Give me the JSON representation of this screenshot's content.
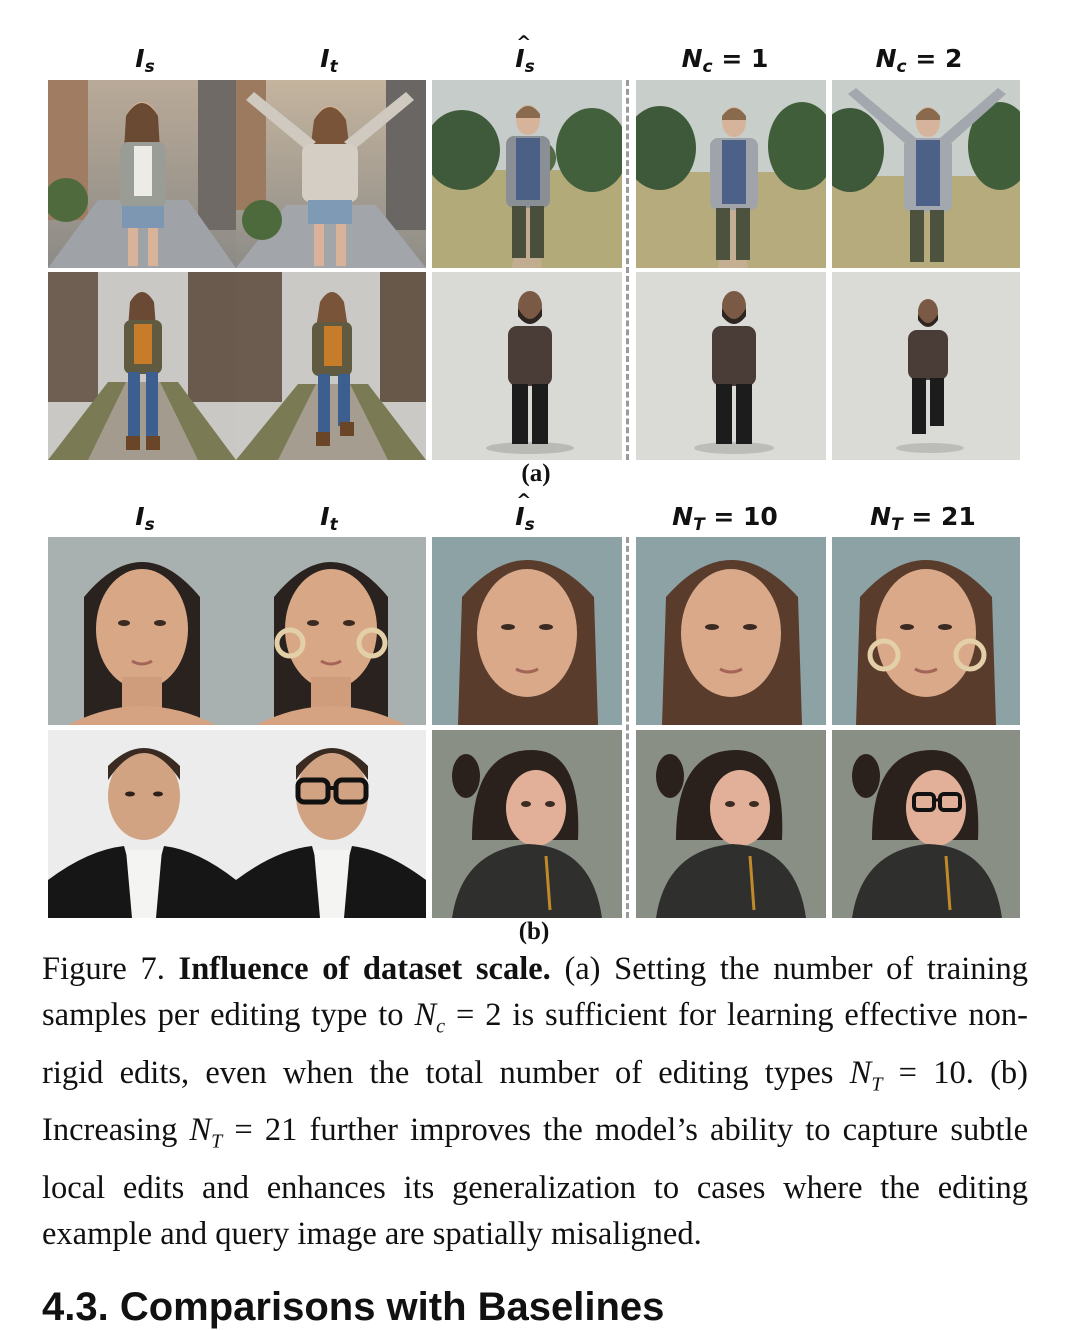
{
  "figure": {
    "section_a": {
      "headers": [
        {
          "base": "I",
          "sub": "s",
          "hat": false
        },
        {
          "base": "I",
          "sub": "t",
          "hat": false
        },
        {
          "base": "I",
          "sub": "s",
          "hat": true
        },
        {
          "base": "N",
          "sub": "c",
          "rest": " = 1"
        },
        {
          "base": "N",
          "sub": "c",
          "rest": " = 2"
        }
      ],
      "label": "(a)"
    },
    "section_b": {
      "headers": [
        {
          "base": "I",
          "sub": "s",
          "hat": false
        },
        {
          "base": "I",
          "sub": "t",
          "hat": false
        },
        {
          "base": "I",
          "sub": "s",
          "hat": true
        },
        {
          "base": "N",
          "sub": "T",
          "rest": " = 10"
        },
        {
          "base": "N",
          "sub": "T",
          "rest": " = 21"
        }
      ],
      "label": "(b)"
    }
  },
  "caption": {
    "fig_no": "Figure 7.",
    "title": "Influence of dataset scale.",
    "part1": "(a) Setting the number of training samples per editing type to ",
    "nc_sym": "N",
    "nc_sub": "c",
    "part2": " = 2 is sufficient for learning effective non-rigid edits, even when the total number of editing types ",
    "nt_sym": "N",
    "nt_sub": "T",
    "part3": " = 10. (b) Increasing ",
    "part4": " = 21 further improves the model’s ability to capture subtle local edits and enhances its generalization to cases where the editing example and query image are spatially misaligned."
  },
  "next_heading": "4.3. Comparisons with Baselines"
}
